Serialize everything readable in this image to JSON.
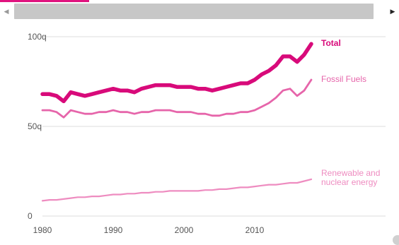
{
  "colors": {
    "accent": "#e0137f",
    "total": "#d80a7a",
    "fossil": "#e665aa",
    "renewable": "#ee8cc0",
    "gridline": "#dedede",
    "scroll_thumb": "#c7c7c7"
  },
  "scrollbar": {
    "left_icon": "chevron-left-icon",
    "right_icon": "chevron-right-icon",
    "left_glyph": "◀",
    "right_glyph": "▶"
  },
  "chart_data": {
    "type": "line",
    "title": "",
    "xlabel": "",
    "ylabel": "",
    "xlim": [
      1980,
      2018
    ],
    "ylim": [
      0,
      100
    ],
    "grid": true,
    "x_ticks": [
      1980,
      1990,
      2000,
      2010
    ],
    "y_ticks": [
      {
        "value": 0,
        "label": "0"
      },
      {
        "value": 50,
        "label": "50q"
      },
      {
        "value": 100,
        "label": "100q"
      }
    ],
    "x": [
      1980,
      1981,
      1982,
      1983,
      1984,
      1985,
      1986,
      1987,
      1988,
      1989,
      1990,
      1991,
      1992,
      1993,
      1994,
      1995,
      1996,
      1997,
      1998,
      1999,
      2000,
      2001,
      2002,
      2003,
      2004,
      2005,
      2006,
      2007,
      2008,
      2009,
      2010,
      2011,
      2012,
      2013,
      2014,
      2015,
      2016,
      2017,
      2018
    ],
    "series": [
      {
        "name": "Total",
        "color": "#d80a7a",
        "values": [
          68.0,
          68.0,
          67.0,
          64.0,
          69.0,
          68.0,
          67.0,
          68.0,
          69.0,
          70.0,
          71.0,
          70.0,
          70.0,
          69.0,
          71.0,
          72.0,
          73.0,
          73.0,
          73.0,
          72.0,
          72.0,
          72.0,
          71.0,
          71.0,
          70.0,
          71.0,
          72.0,
          73.0,
          74.0,
          74.0,
          76.0,
          79.0,
          81.0,
          84.0,
          89.0,
          89.0,
          86.0,
          90.0,
          96.0
        ]
      },
      {
        "name": "Fossil Fuels",
        "color": "#e665aa",
        "values": [
          59.0,
          59.0,
          58.0,
          55.0,
          59.0,
          58.0,
          57.0,
          57.0,
          58.0,
          58.0,
          59.0,
          58.0,
          58.0,
          57.0,
          58.0,
          58.0,
          59.0,
          59.0,
          59.0,
          58.0,
          58.0,
          58.0,
          57.0,
          57.0,
          56.0,
          56.0,
          57.0,
          57.0,
          58.0,
          58.0,
          59.0,
          61.0,
          63.0,
          66.0,
          70.0,
          71.0,
          67.0,
          70.0,
          76.0
        ]
      },
      {
        "name": "Renewable and nuclear energy",
        "label_lines": [
          "Renewable and",
          "nuclear energy"
        ],
        "color": "#ee8cc0",
        "values": [
          8.5,
          9.0,
          9.0,
          9.5,
          10.0,
          10.5,
          10.5,
          11.0,
          11.0,
          11.5,
          12.0,
          12.0,
          12.5,
          12.5,
          13.0,
          13.0,
          13.5,
          13.5,
          14.0,
          14.0,
          14.0,
          14.0,
          14.0,
          14.5,
          14.5,
          15.0,
          15.0,
          15.5,
          16.0,
          16.0,
          16.5,
          17.0,
          17.5,
          17.5,
          18.0,
          18.5,
          18.5,
          19.5,
          20.5
        ]
      }
    ]
  }
}
